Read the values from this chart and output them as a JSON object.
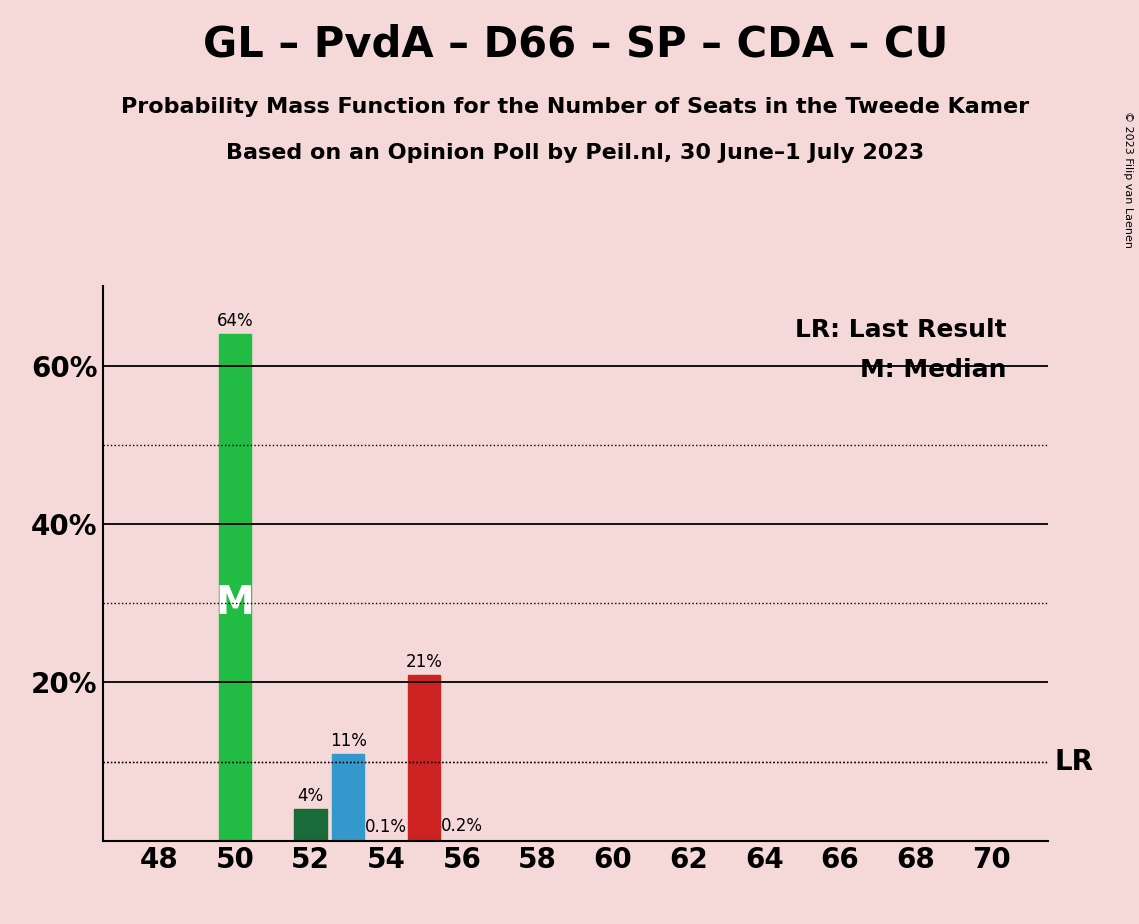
{
  "title": "GL – PvdA – D66 – SP – CDA – CU",
  "subtitle1": "Probability Mass Function for the Number of Seats in the Tweede Kamer",
  "subtitle2": "Based on an Opinion Poll by Peil.nl, 30 June–1 July 2023",
  "background_color": "#f5d8d8",
  "seats": [
    48,
    49,
    50,
    51,
    52,
    53,
    54,
    55,
    56,
    57,
    58,
    59,
    60,
    61,
    62,
    63,
    64,
    65,
    66,
    67,
    68,
    69,
    70
  ],
  "probabilities": [
    0.0,
    0.0,
    64.0,
    0.0,
    4.0,
    11.0,
    0.1,
    21.0,
    0.2,
    0.0,
    0.0,
    0.0,
    0.0,
    0.0,
    0.0,
    0.0,
    0.0,
    0.0,
    0.0,
    0.0,
    0.0,
    0.0,
    0.0
  ],
  "bar_colors_map": {
    "50": "#22bb44",
    "52": "#1a6b3a",
    "53": "#3399cc",
    "55": "#cc2222"
  },
  "median_seat": 50,
  "lr_value": 10.0,
  "ylim": [
    0,
    70
  ],
  "xticks": [
    48,
    50,
    52,
    54,
    56,
    58,
    60,
    62,
    64,
    66,
    68,
    70
  ],
  "solid_yticks": [
    0,
    20,
    40,
    60
  ],
  "dotted_yticks": [
    10,
    30,
    50
  ],
  "ytick_labels": [
    20,
    40,
    60
  ],
  "title_fontsize": 30,
  "subtitle_fontsize": 16,
  "axis_fontsize": 20,
  "bar_label_fontsize": 12,
  "legend_fontsize": 18,
  "copyright_text": "© 2023 Filip van Laenen",
  "lr_label": "LR",
  "lr_label_fontsize": 20,
  "legend_lr": "LR: Last Result",
  "legend_m": "M: Median"
}
